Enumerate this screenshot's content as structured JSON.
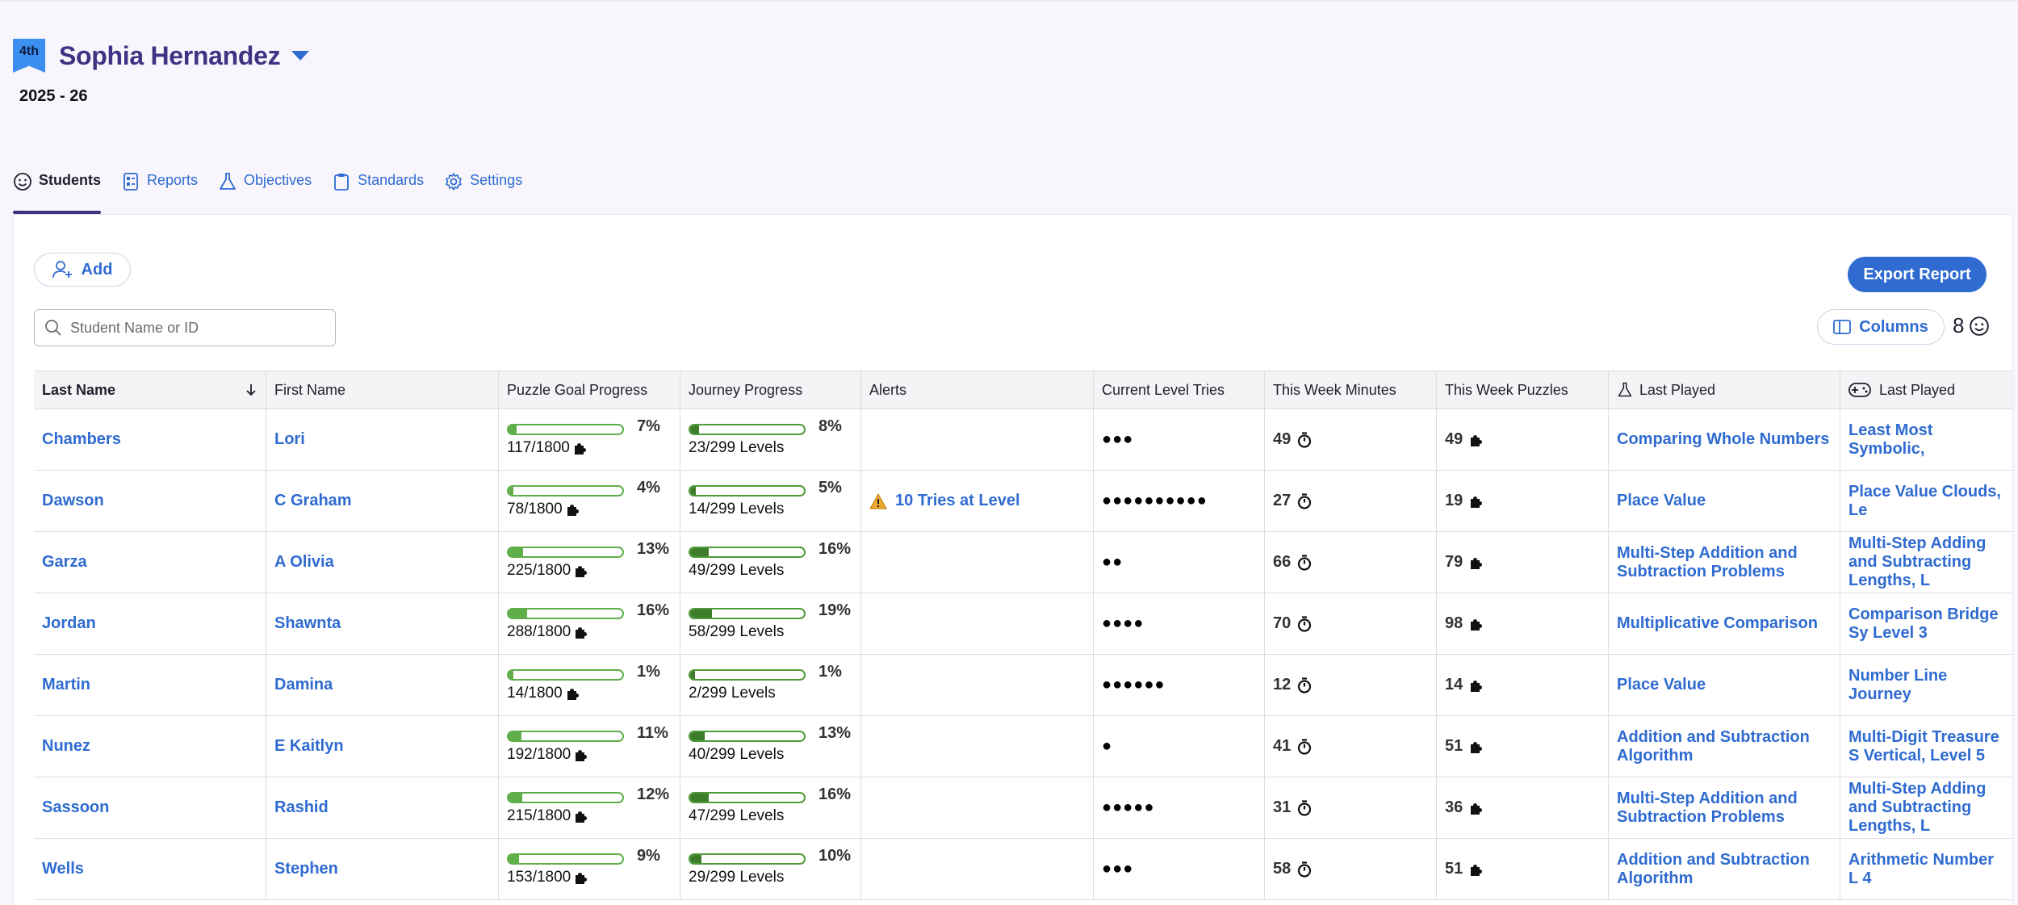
{
  "header": {
    "grade": "4th",
    "teacher_name": "Sophia Hernandez",
    "school_year": "2025 - 26"
  },
  "tabs": [
    {
      "label": "Students",
      "icon": "smiley-icon",
      "active": true
    },
    {
      "label": "Reports",
      "icon": "report-icon",
      "active": false
    },
    {
      "label": "Objectives",
      "icon": "flask-icon",
      "active": false
    },
    {
      "label": "Standards",
      "icon": "clipboard-icon",
      "active": false
    },
    {
      "label": "Settings",
      "icon": "gear-icon",
      "active": false
    }
  ],
  "toolbar": {
    "add_label": "Add",
    "export_label": "Export Report",
    "search_placeholder": "Student Name or ID",
    "columns_label": "Columns",
    "student_count": "8"
  },
  "columns": [
    "Last Name",
    "First Name",
    "Puzzle Goal Progress",
    "Journey Progress",
    "Alerts",
    "Current Level Tries",
    "This Week Minutes",
    "This Week Puzzles",
    "Last Played",
    "Last Played"
  ],
  "students": [
    {
      "last": "Chambers",
      "first": "Lori",
      "puzzle_pct": 7,
      "puzzle_pct_label": "7%",
      "puzzle_count": "117/1800",
      "journey_pct": 8,
      "journey_pct_label": "8%",
      "journey_count": "23/299 Levels",
      "alert": "",
      "tries": "●●●",
      "minutes": "49",
      "puzzles": "49",
      "last_objective": "Comparing Whole Numbers",
      "last_game": "Least Most Symbolic,"
    },
    {
      "last": "Dawson",
      "first": "C Graham",
      "puzzle_pct": 4,
      "puzzle_pct_label": "4%",
      "puzzle_count": "78/1800",
      "journey_pct": 5,
      "journey_pct_label": "5%",
      "journey_count": "14/299 Levels",
      "alert": "10 Tries at Level",
      "tries": "●●●●●●●●●●",
      "minutes": "27",
      "puzzles": "19",
      "last_objective": "Place Value",
      "last_game": "Place Value Clouds, Le"
    },
    {
      "last": "Garza",
      "first": "A Olivia",
      "puzzle_pct": 13,
      "puzzle_pct_label": "13%",
      "puzzle_count": "225/1800",
      "journey_pct": 16,
      "journey_pct_label": "16%",
      "journey_count": "49/299 Levels",
      "alert": "",
      "tries": "●●",
      "minutes": "66",
      "puzzles": "79",
      "last_objective": "Multi-Step Addition and Subtraction Problems",
      "last_game": "Multi-Step Adding and Subtracting Lengths, L"
    },
    {
      "last": "Jordan",
      "first": "Shawnta",
      "puzzle_pct": 16,
      "puzzle_pct_label": "16%",
      "puzzle_count": "288/1800",
      "journey_pct": 19,
      "journey_pct_label": "19%",
      "journey_count": "58/299 Levels",
      "alert": "",
      "tries": "●●●●",
      "minutes": "70",
      "puzzles": "98",
      "last_objective": "Multiplicative Comparison",
      "last_game": "Comparison Bridge Sy Level 3"
    },
    {
      "last": "Martin",
      "first": "Damina",
      "puzzle_pct": 1,
      "puzzle_pct_label": "1%",
      "puzzle_count": "14/1800",
      "journey_pct": 1,
      "journey_pct_label": "1%",
      "journey_count": "2/299 Levels",
      "alert": "",
      "tries": "●●●●●●",
      "minutes": "12",
      "puzzles": "14",
      "last_objective": "Place Value",
      "last_game": "Number Line Journey"
    },
    {
      "last": "Nunez",
      "first": "E Kaitlyn",
      "puzzle_pct": 11,
      "puzzle_pct_label": "11%",
      "puzzle_count": "192/1800",
      "journey_pct": 13,
      "journey_pct_label": "13%",
      "journey_count": "40/299 Levels",
      "alert": "",
      "tries": "●",
      "minutes": "41",
      "puzzles": "51",
      "last_objective": "Addition and Subtraction Algorithm",
      "last_game": "Multi-Digit Treasure S Vertical, Level 5"
    },
    {
      "last": "Sassoon",
      "first": "Rashid",
      "puzzle_pct": 12,
      "puzzle_pct_label": "12%",
      "puzzle_count": "215/1800",
      "journey_pct": 16,
      "journey_pct_label": "16%",
      "journey_count": "47/299 Levels",
      "alert": "",
      "tries": "●●●●●",
      "minutes": "31",
      "puzzles": "36",
      "last_objective": "Multi-Step Addition and Subtraction Problems",
      "last_game": "Multi-Step Adding and Subtracting Lengths, L"
    },
    {
      "last": "Wells",
      "first": "Stephen",
      "puzzle_pct": 9,
      "puzzle_pct_label": "9%",
      "puzzle_count": "153/1800",
      "journey_pct": 10,
      "journey_pct_label": "10%",
      "journey_count": "29/299 Levels",
      "alert": "",
      "tries": "●●●",
      "minutes": "58",
      "puzzles": "51",
      "last_objective": "Addition and Subtraction Algorithm",
      "last_game": "Arithmetic Number L 4"
    }
  ],
  "colors": {
    "accent": "#2f6bd0",
    "brand": "#3c3483",
    "progress": "#5fae4a",
    "progress_dark": "#3d7d2a",
    "warning": "#f0a92a"
  }
}
